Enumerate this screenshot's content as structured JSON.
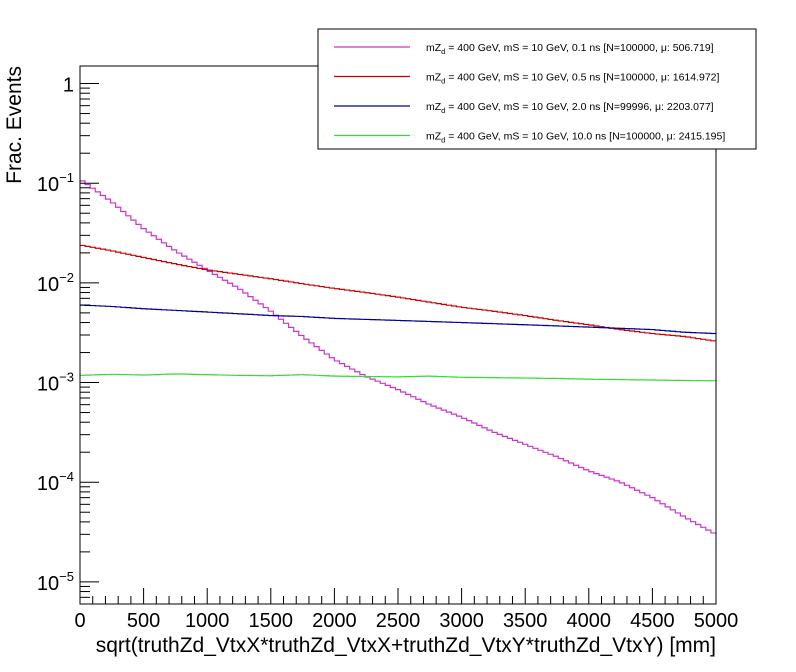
{
  "chart_data": {
    "type": "line",
    "xlabel": "sqrt(truthZd_VtxX*truthZd_VtxX+truthZd_VtxY*truthZd_VtxY) [mm]",
    "ylabel": "Frac. Events",
    "xlim": [
      0,
      5000
    ],
    "ylim": [
      6e-06,
      1.5
    ],
    "yscale": "log",
    "x_ticks": [
      {
        "value": 0,
        "label": "0"
      },
      {
        "value": 500,
        "label": "500"
      },
      {
        "value": 1000,
        "label": "1000"
      },
      {
        "value": 1500,
        "label": "1500"
      },
      {
        "value": 2000,
        "label": "2000"
      },
      {
        "value": 2500,
        "label": "2500"
      },
      {
        "value": 3000,
        "label": "3000"
      },
      {
        "value": 3500,
        "label": "3500"
      },
      {
        "value": 4000,
        "label": "4000"
      },
      {
        "value": 4500,
        "label": "4500"
      },
      {
        "value": 5000,
        "label": "5000"
      }
    ],
    "y_ticks": [
      {
        "value": 1e-05,
        "base": "10",
        "exp": "−5"
      },
      {
        "value": 0.0001,
        "base": "10",
        "exp": "−4"
      },
      {
        "value": 0.001,
        "base": "10",
        "exp": "−3"
      },
      {
        "value": 0.01,
        "base": "10",
        "exp": "−2"
      },
      {
        "value": 0.1,
        "base": "10",
        "exp": "−1"
      },
      {
        "value": 1,
        "base": "1",
        "exp": ""
      }
    ],
    "grid": false,
    "legend_position": "top-right",
    "series": [
      {
        "name_parts": [
          "mZ",
          "d",
          " = 400 GeV, mS = 10 GeV, 0.1 ns [N=100000, μ: 506.719]"
        ],
        "color": "#cc33cc",
        "x": [
          0,
          250,
          500,
          750,
          1000,
          1250,
          1500,
          1750,
          2000,
          2250,
          2500,
          2750,
          3000,
          3250,
          3500,
          3750,
          4000,
          4250,
          4500,
          4750,
          5000
        ],
        "y": [
          0.11,
          0.065,
          0.035,
          0.021,
          0.0135,
          0.0088,
          0.0052,
          0.0029,
          0.0017,
          0.00115,
          0.00085,
          0.0006,
          0.00045,
          0.00032,
          0.00024,
          0.00018,
          0.00013,
          0.0001,
          7e-05,
          4.5e-05,
          3e-05
        ]
      },
      {
        "name_parts": [
          "mZ",
          "d",
          " = 400 GeV, mS = 10 GeV, 0.5 ns [N=100000, μ: 1614.972]"
        ],
        "color": "#cc0000",
        "x": [
          0,
          250,
          500,
          750,
          1000,
          1250,
          1500,
          1750,
          2000,
          2250,
          2500,
          2750,
          3000,
          3250,
          3500,
          3750,
          4000,
          4250,
          4500,
          4750,
          5000
        ],
        "y": [
          0.024,
          0.021,
          0.018,
          0.0155,
          0.0135,
          0.0122,
          0.011,
          0.0098,
          0.0088,
          0.008,
          0.0072,
          0.0064,
          0.0057,
          0.0052,
          0.0047,
          0.0042,
          0.0038,
          0.0034,
          0.0031,
          0.0029,
          0.0026
        ]
      },
      {
        "name_parts": [
          "mZ",
          "d",
          " = 400 GeV, mS = 10 GeV, 2.0 ns [N=99996, μ: 2203.077]"
        ],
        "color": "#000099",
        "x": [
          0,
          250,
          500,
          750,
          1000,
          1250,
          1500,
          1750,
          2000,
          2250,
          2500,
          2750,
          3000,
          3250,
          3500,
          3750,
          4000,
          4250,
          4500,
          4750,
          5000
        ],
        "y": [
          0.006,
          0.0058,
          0.0055,
          0.0053,
          0.0051,
          0.0049,
          0.0047,
          0.0046,
          0.0044,
          0.0043,
          0.0042,
          0.0041,
          0.004,
          0.0039,
          0.0038,
          0.0037,
          0.0036,
          0.0035,
          0.0034,
          0.0032,
          0.0031
        ]
      },
      {
        "name_parts": [
          "mZ",
          "d",
          " = 400 GeV, mS = 10 GeV, 10.0 ns [N=100000, μ: 2415.195]"
        ],
        "color": "#33dd33",
        "x": [
          0,
          250,
          500,
          750,
          1000,
          1250,
          1500,
          1750,
          2000,
          2250,
          2500,
          2750,
          3000,
          3250,
          3500,
          3750,
          4000,
          4250,
          4500,
          4750,
          5000
        ],
        "y": [
          0.00118,
          0.00121,
          0.00119,
          0.00122,
          0.0012,
          0.00118,
          0.00117,
          0.0012,
          0.00116,
          0.00115,
          0.00114,
          0.00116,
          0.00113,
          0.00112,
          0.00111,
          0.0011,
          0.00108,
          0.00107,
          0.00106,
          0.00105,
          0.00104
        ]
      }
    ]
  }
}
